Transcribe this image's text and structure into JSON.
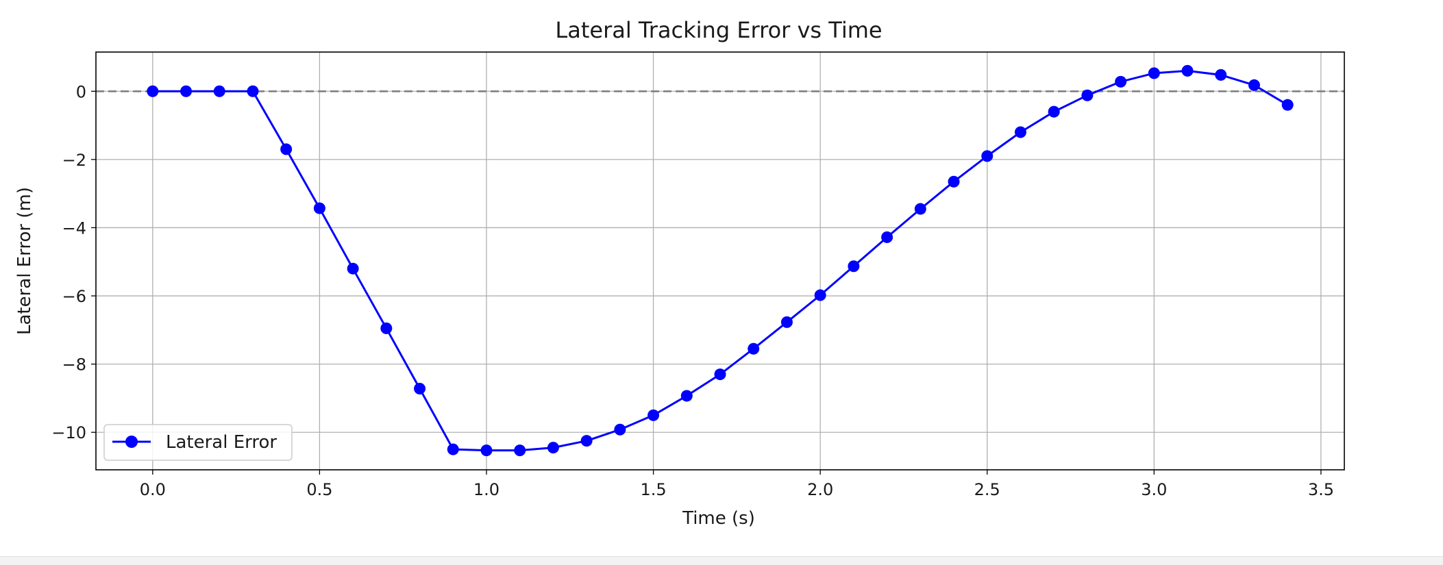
{
  "chart_data": {
    "type": "line",
    "title": "Lateral Tracking Error vs Time",
    "xlabel": "Time (s)",
    "ylabel": "Lateral Error (m)",
    "xlim": [
      -0.17,
      3.57
    ],
    "ylim": [
      -11.1,
      1.15
    ],
    "xticks": [
      0.0,
      0.5,
      1.0,
      1.5,
      2.0,
      2.5,
      3.0,
      3.5
    ],
    "xtick_labels": [
      "0.0",
      "0.5",
      "1.0",
      "1.5",
      "2.0",
      "2.5",
      "3.0",
      "3.5"
    ],
    "yticks": [
      0,
      -2,
      -4,
      -6,
      -8,
      -10
    ],
    "ytick_labels": [
      "0",
      "−2",
      "−4",
      "−6",
      "−8",
      "−10"
    ],
    "grid": true,
    "reference_line": {
      "y": 0,
      "style": "dashed",
      "color": "#808080"
    },
    "legend": {
      "placement": "lower-left"
    },
    "series": [
      {
        "name": "Lateral Error",
        "color": "#0000ff",
        "marker": "circle",
        "x": [
          0.0,
          0.1,
          0.2,
          0.3,
          0.4,
          0.5,
          0.6,
          0.7,
          0.8,
          0.9,
          1.0,
          1.1,
          1.2,
          1.3,
          1.4,
          1.5,
          1.6,
          1.7,
          1.8,
          1.9,
          2.0,
          2.1,
          2.2,
          2.3,
          2.4,
          2.5,
          2.6,
          2.7,
          2.8,
          2.9,
          3.0,
          3.1,
          3.2,
          3.3,
          3.4
        ],
        "y": [
          0.0,
          0.0,
          0.0,
          0.0,
          -1.7,
          -3.43,
          -5.2,
          -6.95,
          -8.72,
          -10.5,
          -10.53,
          -10.53,
          -10.45,
          -10.25,
          -9.92,
          -9.5,
          -8.93,
          -8.3,
          -7.55,
          -6.77,
          -5.98,
          -5.13,
          -4.28,
          -3.45,
          -2.65,
          -1.9,
          -1.2,
          -0.6,
          -0.12,
          0.28,
          0.53,
          0.6,
          0.48,
          0.18,
          -0.4
        ]
      }
    ]
  }
}
